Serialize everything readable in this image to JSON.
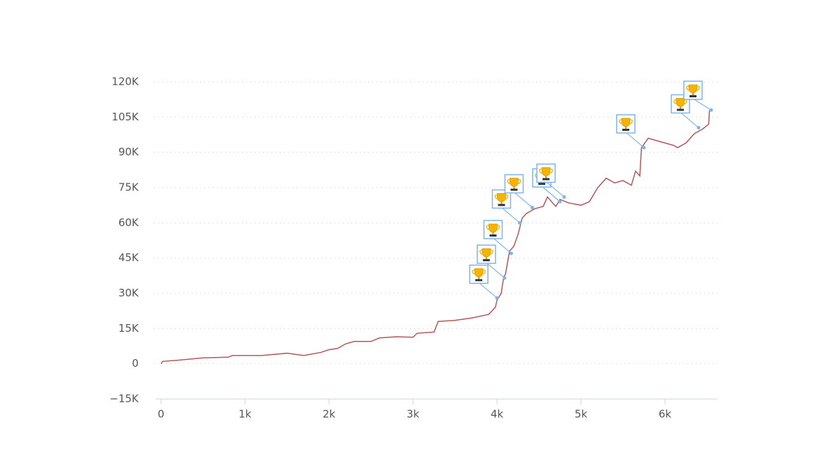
{
  "chart_data": {
    "type": "line",
    "xlim": [
      0,
      6625
    ],
    "ylim": [
      -15000,
      120000
    ],
    "xticks": [
      0,
      {
        "value": 1000,
        "label": "1k"
      },
      {
        "value": 2000,
        "label": "2k"
      },
      {
        "value": 3000,
        "label": "3k"
      },
      {
        "value": 4000,
        "label": "4k"
      },
      {
        "value": 5000,
        "label": "5k"
      },
      {
        "value": 6000,
        "label": "6k"
      }
    ],
    "yticks": [
      {
        "value": -15000,
        "label": "−15K"
      },
      0,
      {
        "value": 15000,
        "label": "15K"
      },
      {
        "value": 30000,
        "label": "30K"
      },
      {
        "value": 45000,
        "label": "45K"
      },
      {
        "value": 60000,
        "label": "60K"
      },
      {
        "value": 75000,
        "label": "75K"
      },
      {
        "value": 90000,
        "label": "90K"
      },
      {
        "value": 105000,
        "label": "105K"
      },
      {
        "value": 120000,
        "label": "120K"
      }
    ],
    "grid": true,
    "series": [
      {
        "color": "#b5575a",
        "x": [
          0,
          20,
          200,
          500,
          800,
          850,
          1200,
          1500,
          1700,
          1900,
          2000,
          2100,
          2200,
          2300,
          2500,
          2600,
          2800,
          3000,
          3050,
          3250,
          3300,
          3500,
          3700,
          3900,
          3980,
          4000,
          4050,
          4080,
          4100,
          4150,
          4200,
          4250,
          4300,
          4350,
          4450,
          4550,
          4600,
          4700,
          4750,
          4850,
          5000,
          5100,
          5200,
          5300,
          5400,
          5500,
          5600,
          5650,
          5700,
          5720,
          5800,
          5900,
          6000,
          6100,
          6150,
          6250,
          6350,
          6450,
          6520,
          6530
        ],
        "values": [
          0,
          1000,
          1500,
          2500,
          2800,
          3500,
          3500,
          4500,
          3500,
          4800,
          6000,
          6500,
          8500,
          9500,
          9500,
          11000,
          11500,
          11300,
          13000,
          13500,
          18000,
          18500,
          19500,
          21000,
          24000,
          27000,
          30000,
          37000,
          38000,
          48000,
          50000,
          55000,
          62000,
          64000,
          66000,
          67000,
          71000,
          67000,
          70000,
          68500,
          67500,
          69000,
          75000,
          79000,
          77000,
          78000,
          76000,
          82000,
          80000,
          92000,
          96000,
          95000,
          94000,
          93000,
          92000,
          94000,
          98000,
          100000,
          102000,
          108000
        ]
      }
    ],
    "flags": {
      "x": [
        4000,
        4090,
        4170,
        4270,
        4420,
        4750,
        4800,
        5750,
        6400,
        6550
      ],
      "values": [
        28000,
        36500,
        47000,
        60000,
        66500,
        69000,
        71000,
        92000,
        100500,
        108000
      ]
    }
  }
}
